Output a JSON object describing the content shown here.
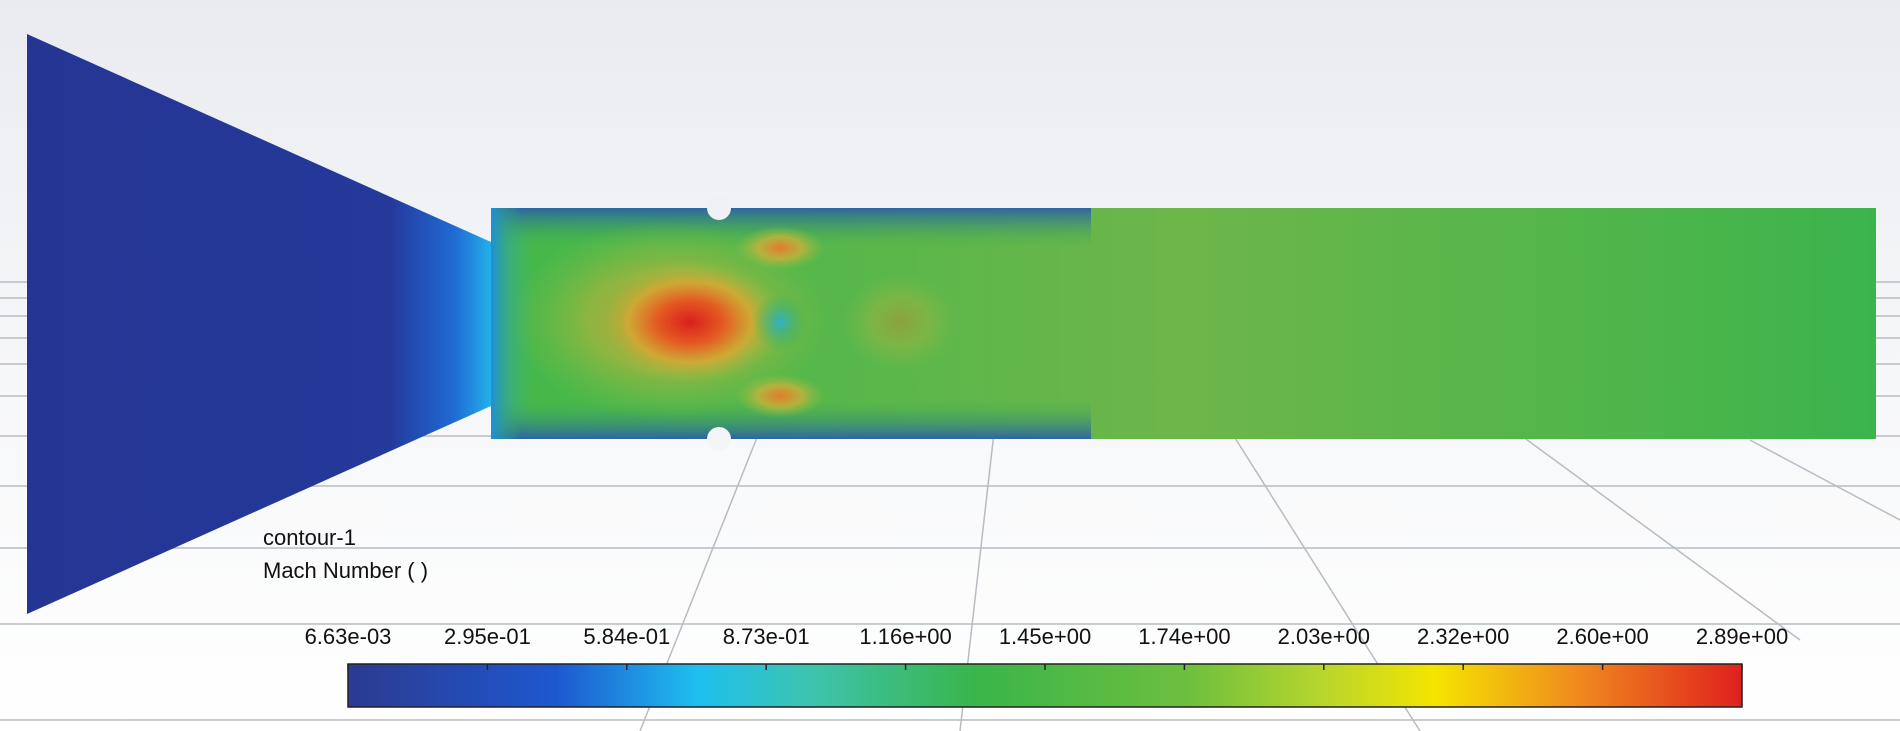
{
  "legend": {
    "title": "contour-1",
    "variable": "Mach Number ( )",
    "ticks": [
      "6.63e-03",
      "2.95e-01",
      "5.84e-01",
      "8.73e-01",
      "1.16e+00",
      "1.45e+00",
      "1.74e+00",
      "2.03e+00",
      "2.32e+00",
      "2.60e+00",
      "2.89e+00"
    ]
  }
}
